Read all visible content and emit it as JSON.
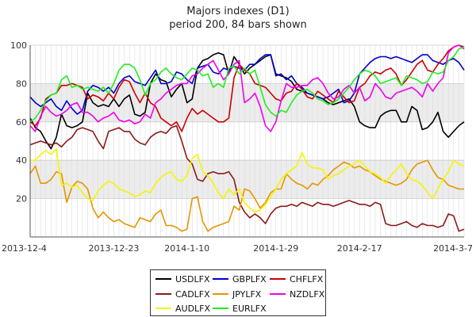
{
  "chart_data": {
    "type": "line",
    "title": "Majors indexes (D1)",
    "subtitle": "period 200, 84 bars shown",
    "xlabel": "",
    "ylabel": "",
    "ylim": [
      0,
      100
    ],
    "y_ticks": [
      20,
      40,
      60,
      80,
      100
    ],
    "x_ticks": [
      {
        "label": "2013-12-4",
        "index": 0
      },
      {
        "label": "2013-12-23",
        "index": 16
      },
      {
        "label": "2014-1-10",
        "index": 30
      },
      {
        "label": "2014-1-29",
        "index": 47
      },
      {
        "label": "2014-2-17",
        "index": 63
      },
      {
        "label": "2014-3-7",
        "index": 82
      }
    ],
    "bars_shown": 84,
    "grid": true,
    "shaded_bands": [
      [
        20,
        40
      ],
      [
        60,
        80
      ]
    ],
    "legend_placement": "bottom-center",
    "series": [
      {
        "name": "USDLFX",
        "color": "#000000",
        "values": [
          62,
          57,
          55,
          50,
          46,
          52,
          64,
          58,
          57,
          58,
          60,
          75,
          70,
          68,
          69,
          68,
          72,
          68,
          72,
          74,
          64,
          63,
          65,
          80,
          85,
          82,
          81,
          73,
          77,
          80,
          70,
          72,
          88,
          92,
          93,
          95,
          96,
          95,
          85,
          94,
          90,
          85,
          88,
          90,
          92,
          94,
          95,
          85,
          84,
          83,
          81,
          77,
          76,
          75,
          74,
          73,
          72,
          70,
          69,
          70,
          71,
          72,
          68,
          60,
          58,
          57,
          57,
          63,
          65,
          66,
          66,
          60,
          60,
          68,
          66,
          56,
          57,
          60,
          65,
          55,
          52,
          55,
          58,
          60
        ]
      },
      {
        "name": "GBPLFX",
        "color": "#0000cc",
        "values": [
          73,
          70,
          68,
          70,
          72,
          68,
          66,
          71,
          67,
          64,
          66,
          76,
          79,
          78,
          76,
          78,
          75,
          80,
          83,
          84,
          81,
          80,
          79,
          83,
          87,
          80,
          80,
          81,
          86,
          85,
          82,
          80,
          88,
          89,
          90,
          86,
          85,
          88,
          87,
          89,
          88,
          87,
          90,
          90,
          93,
          95,
          95,
          84,
          85,
          82,
          84,
          80,
          78,
          75,
          74,
          73,
          72,
          73,
          75,
          77,
          70,
          71,
          75,
          85,
          88,
          91,
          93,
          94,
          94,
          93,
          94,
          93,
          92,
          91,
          93,
          95,
          95,
          92,
          91,
          90,
          92,
          93,
          91,
          87
        ]
      },
      {
        "name": "CHFLFX",
        "color": "#cc0000",
        "values": [
          60,
          58,
          62,
          72,
          74,
          75,
          79,
          79,
          80,
          79,
          78,
          72,
          74,
          73,
          71,
          75,
          72,
          78,
          82,
          81,
          75,
          70,
          75,
          70,
          68,
          62,
          60,
          58,
          60,
          55,
          62,
          67,
          64,
          66,
          64,
          62,
          60,
          60,
          62,
          83,
          90,
          87,
          85,
          80,
          79,
          78,
          75,
          72,
          71,
          75,
          76,
          80,
          77,
          73,
          72,
          76,
          74,
          72,
          70,
          76,
          73,
          70,
          71,
          78,
          80,
          84,
          86,
          85,
          87,
          88,
          85,
          79,
          82,
          86,
          90,
          92,
          87,
          86,
          90,
          93,
          97,
          99,
          100,
          99
        ]
      },
      {
        "name": "CADLFX",
        "color": "#8b1a1a",
        "values": [
          48,
          49,
          50,
          49,
          48,
          49,
          47,
          50,
          52,
          56,
          57,
          56,
          55,
          50,
          46,
          55,
          56,
          57,
          55,
          55,
          51,
          49,
          48,
          52,
          54,
          55,
          54,
          57,
          58,
          50,
          41,
          38,
          30,
          29,
          33,
          34,
          33,
          33,
          34,
          30,
          18,
          13,
          10,
          12,
          10,
          7,
          12,
          15,
          16,
          16,
          17,
          16,
          18,
          17,
          16,
          18,
          17,
          17,
          16,
          17,
          18,
          19,
          18,
          17,
          17,
          16,
          18,
          17,
          7,
          6,
          6,
          7,
          8,
          6,
          5,
          7,
          6,
          6,
          5,
          6,
          12,
          11,
          3,
          4
        ]
      },
      {
        "name": "JPYLFX",
        "color": "#e69500",
        "values": [
          33,
          37,
          28,
          28,
          30,
          34,
          33,
          18,
          26,
          29,
          28,
          25,
          15,
          10,
          13,
          10,
          8,
          9,
          7,
          6,
          5,
          10,
          9,
          8,
          12,
          14,
          6,
          6,
          5,
          3,
          4,
          20,
          21,
          8,
          3,
          5,
          6,
          7,
          8,
          16,
          14,
          25,
          24,
          20,
          15,
          18,
          23,
          25,
          25,
          33,
          30,
          28,
          27,
          25,
          28,
          27,
          30,
          32,
          35,
          37,
          39,
          38,
          36,
          37,
          35,
          34,
          32,
          30,
          29,
          28,
          27,
          28,
          30,
          35,
          38,
          39,
          40,
          35,
          31,
          30,
          27,
          26,
          25,
          25
        ]
      },
      {
        "name": "NZDLFX",
        "color": "#ee00ee",
        "values": [
          58,
          55,
          63,
          68,
          65,
          63,
          64,
          66,
          69,
          70,
          65,
          65,
          63,
          60,
          62,
          63,
          65,
          61,
          60,
          61,
          59,
          60,
          64,
          62,
          70,
          72,
          75,
          77,
          79,
          80,
          80,
          84,
          85,
          88,
          90,
          92,
          87,
          82,
          85,
          90,
          92,
          70,
          72,
          75,
          68,
          58,
          55,
          60,
          71,
          80,
          78,
          78,
          79,
          79,
          82,
          83,
          80,
          75,
          72,
          73,
          77,
          79,
          75,
          78,
          71,
          73,
          80,
          77,
          73,
          72,
          75,
          76,
          77,
          78,
          76,
          73,
          80,
          76,
          80,
          83,
          96,
          99,
          100,
          98
        ]
      },
      {
        "name": "AUDLFX",
        "color": "#f5f500",
        "values": [
          40,
          40,
          43,
          45,
          43,
          46,
          27,
          28,
          26,
          27,
          23,
          20,
          19,
          24,
          27,
          29,
          28,
          25,
          24,
          23,
          21,
          22,
          24,
          23,
          28,
          31,
          33,
          34,
          30,
          29,
          32,
          41,
          43,
          34,
          32,
          28,
          23,
          20,
          25,
          22,
          25,
          18,
          15,
          13,
          14,
          17,
          21,
          25,
          30,
          33,
          35,
          37,
          44,
          38,
          36,
          36,
          35,
          30,
          32,
          33,
          35,
          37,
          38,
          40,
          37,
          34,
          33,
          31,
          28,
          32,
          35,
          38,
          33,
          30,
          29,
          27,
          23,
          20,
          25,
          30,
          34,
          40,
          38,
          37
        ]
      },
      {
        "name": "EURLFX",
        "color": "#22ee22",
        "values": [
          60,
          62,
          66,
          71,
          74,
          75,
          82,
          84,
          78,
          79,
          77,
          78,
          77,
          76,
          78,
          75,
          80,
          87,
          90,
          90,
          88,
          82,
          74,
          80,
          82,
          86,
          88,
          85,
          83,
          82,
          85,
          88,
          87,
          84,
          85,
          78,
          80,
          78,
          88,
          89,
          85,
          88,
          85,
          87,
          78,
          69,
          65,
          63,
          66,
          65,
          70,
          74,
          76,
          77,
          75,
          72,
          71,
          69,
          70,
          72,
          75,
          78,
          82,
          85,
          87,
          86,
          84,
          80,
          81,
          82,
          83,
          79,
          84,
          83,
          82,
          80,
          81,
          86,
          85,
          86,
          92,
          94,
          98,
          99
        ]
      }
    ]
  }
}
